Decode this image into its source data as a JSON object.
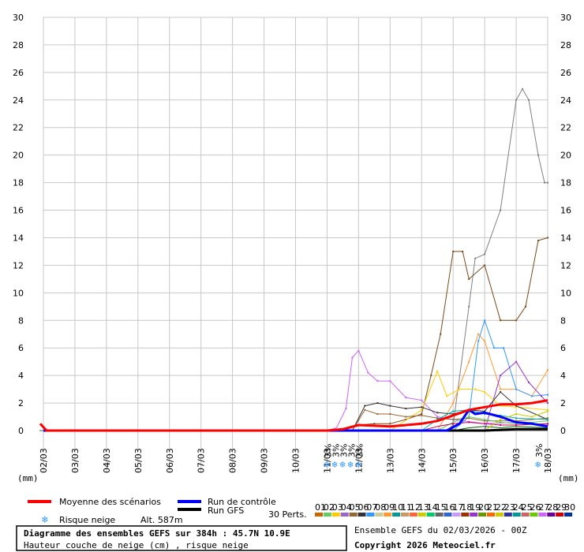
{
  "chart_data": {
    "type": "line",
    "x_categories": [
      "02/03",
      "03/03",
      "04/03",
      "05/03",
      "06/03",
      "07/03",
      "08/03",
      "09/03",
      "10/03",
      "11/03",
      "12/03",
      "13/03",
      "14/03",
      "15/03",
      "16/03",
      "17/03",
      "18/03"
    ],
    "ylim": [
      0,
      30
    ],
    "y_ticks": [
      0,
      2,
      4,
      6,
      8,
      10,
      12,
      14,
      16,
      18,
      20,
      22,
      24,
      26,
      28,
      30
    ],
    "y_unit_label": "(mm)",
    "grid": true,
    "series": [
      {
        "name": "Moyenne des scénarios",
        "color": "#ff0000",
        "width": 3,
        "points": [
          [
            -0.1,
            0.5
          ],
          [
            0.1,
            0
          ],
          [
            9,
            0
          ],
          [
            9.5,
            0.1
          ],
          [
            10,
            0.4
          ],
          [
            11,
            0.3
          ],
          [
            12,
            0.5
          ],
          [
            12.5,
            0.7
          ],
          [
            13,
            1.1
          ],
          [
            13.5,
            1.5
          ],
          [
            14,
            1.7
          ],
          [
            14.5,
            1.9
          ],
          [
            15,
            1.9
          ],
          [
            15.5,
            2.0
          ],
          [
            16,
            2.2
          ]
        ]
      },
      {
        "name": "Run de contrôle",
        "color": "#0000ff",
        "width": 3,
        "points": [
          [
            0,
            0
          ],
          [
            12.8,
            0
          ],
          [
            13.2,
            0.5
          ],
          [
            13.5,
            1.5
          ],
          [
            13.7,
            1.2
          ],
          [
            14,
            1.3
          ],
          [
            14.5,
            1.0
          ],
          [
            15,
            0.6
          ],
          [
            15.5,
            0.5
          ],
          [
            16,
            0.3
          ]
        ]
      },
      {
        "name": "Run GFS",
        "color": "#000000",
        "width": 3,
        "points": [
          [
            0,
            0
          ],
          [
            14,
            0
          ],
          [
            15,
            0.1
          ],
          [
            16,
            0.1
          ]
        ]
      }
    ],
    "perturbations": [
      {
        "color": "#808080",
        "points": [
          [
            0,
            0
          ],
          [
            12.8,
            0
          ],
          [
            13,
            0.4
          ],
          [
            13.5,
            9
          ],
          [
            13.7,
            12.5
          ],
          [
            14,
            12.8
          ],
          [
            14.5,
            16
          ],
          [
            15,
            24
          ],
          [
            15.2,
            24.8
          ],
          [
            15.4,
            24
          ],
          [
            15.7,
            20
          ],
          [
            15.9,
            18
          ],
          [
            16,
            18
          ]
        ]
      },
      {
        "color": "#7a4a1a",
        "points": [
          [
            0,
            0
          ],
          [
            9.5,
            0
          ],
          [
            10,
            0.4
          ],
          [
            10.5,
            0.5
          ],
          [
            11,
            0.5
          ],
          [
            11.5,
            0.8
          ],
          [
            12,
            1.2
          ],
          [
            12.3,
            4
          ],
          [
            12.6,
            7
          ],
          [
            13,
            13
          ],
          [
            13.3,
            13
          ],
          [
            13.5,
            11
          ],
          [
            14,
            12
          ],
          [
            14.5,
            8
          ],
          [
            15,
            8
          ],
          [
            15.3,
            9
          ],
          [
            15.7,
            13.8
          ],
          [
            16,
            14
          ]
        ]
      },
      {
        "color": "#cc66ff",
        "points": [
          [
            0,
            0
          ],
          [
            9,
            0
          ],
          [
            9.3,
            0.2
          ],
          [
            9.6,
            1.6
          ],
          [
            9.8,
            5.3
          ],
          [
            10,
            5.8
          ],
          [
            10.3,
            4.2
          ],
          [
            10.6,
            3.6
          ],
          [
            11,
            3.6
          ],
          [
            11.5,
            2.4
          ],
          [
            12,
            2.2
          ],
          [
            12.5,
            1
          ],
          [
            13,
            0.8
          ],
          [
            14,
            0.5
          ],
          [
            15,
            0.6
          ],
          [
            16,
            0.4
          ]
        ]
      },
      {
        "color": "#ff9933",
        "points": [
          [
            0,
            0
          ],
          [
            12.5,
            0
          ],
          [
            13,
            2
          ],
          [
            13.5,
            5
          ],
          [
            13.8,
            7
          ],
          [
            14,
            6.5
          ],
          [
            14.5,
            3
          ],
          [
            15,
            3
          ],
          [
            15.5,
            2.5
          ],
          [
            16,
            4.4
          ]
        ]
      },
      {
        "color": "#3399ff",
        "points": [
          [
            0,
            0
          ],
          [
            13,
            0
          ],
          [
            13.5,
            1
          ],
          [
            13.8,
            6.5
          ],
          [
            14,
            8
          ],
          [
            14.3,
            6
          ],
          [
            14.6,
            6
          ],
          [
            15,
            3
          ],
          [
            15.5,
            2.5
          ],
          [
            16,
            2.6
          ]
        ]
      },
      {
        "color": "#9933cc",
        "points": [
          [
            0,
            0
          ],
          [
            14,
            0
          ],
          [
            14.5,
            4
          ],
          [
            15,
            5
          ],
          [
            15.4,
            3.5
          ],
          [
            15.8,
            2.5
          ],
          [
            16,
            2.0
          ]
        ]
      },
      {
        "color": "#ffcc00",
        "points": [
          [
            0,
            0
          ],
          [
            11,
            0
          ],
          [
            12,
            1.5
          ],
          [
            12.5,
            4.3
          ],
          [
            12.8,
            2.5
          ],
          [
            13.2,
            3
          ],
          [
            13.7,
            3
          ],
          [
            14,
            2.8
          ],
          [
            14.5,
            1.8
          ],
          [
            15,
            1.7
          ],
          [
            16,
            1.5
          ]
        ]
      },
      {
        "color": "#333333",
        "points": [
          [
            0,
            0
          ],
          [
            9.8,
            0
          ],
          [
            10.2,
            1.8
          ],
          [
            10.6,
            2.0
          ],
          [
            11,
            1.8
          ],
          [
            11.5,
            1.6
          ],
          [
            12,
            1.7
          ],
          [
            12.5,
            1.3
          ],
          [
            13,
            1.2
          ],
          [
            13.5,
            1.5
          ],
          [
            14,
            1.4
          ],
          [
            14.5,
            2.8
          ],
          [
            15,
            1.8
          ],
          [
            16,
            0.8
          ]
        ]
      },
      {
        "color": "#996633",
        "points": [
          [
            0,
            0
          ],
          [
            9.8,
            0
          ],
          [
            10.2,
            1.5
          ],
          [
            10.6,
            1.2
          ],
          [
            11,
            1.2
          ],
          [
            11.5,
            1
          ],
          [
            12,
            1.1
          ],
          [
            12.5,
            0.9
          ],
          [
            13,
            0.8
          ],
          [
            13.5,
            0.9
          ],
          [
            14,
            0.7
          ],
          [
            15,
            0.7
          ],
          [
            16,
            0.9
          ]
        ]
      },
      {
        "color": "#00aaaa",
        "points": [
          [
            0,
            0
          ],
          [
            12,
            0
          ],
          [
            12.5,
            0.8
          ],
          [
            13,
            1.4
          ],
          [
            13.5,
            1.5
          ],
          [
            14,
            1.2
          ],
          [
            14.5,
            1.1
          ],
          [
            15,
            0.9
          ],
          [
            16,
            0.8
          ]
        ]
      },
      {
        "color": "#66cc66",
        "points": [
          [
            0,
            0
          ],
          [
            12.5,
            0
          ],
          [
            13,
            0.6
          ],
          [
            13.5,
            1.0
          ],
          [
            14,
            0.8
          ],
          [
            14.5,
            0.6
          ],
          [
            15,
            0.5
          ],
          [
            16,
            0.7
          ]
        ]
      },
      {
        "color": "#cc0066",
        "points": [
          [
            0,
            0
          ],
          [
            12,
            0
          ],
          [
            12.5,
            0.3
          ],
          [
            13,
            0.5
          ],
          [
            13.5,
            0.6
          ],
          [
            14,
            0.5
          ],
          [
            14.5,
            0.4
          ],
          [
            15,
            0.4
          ],
          [
            16,
            0.5
          ]
        ]
      },
      {
        "color": "#006600",
        "points": [
          [
            0,
            0
          ],
          [
            13,
            0
          ],
          [
            13.5,
            0.2
          ],
          [
            14,
            0.3
          ],
          [
            14.5,
            0.2
          ],
          [
            15,
            0.3
          ],
          [
            16,
            0.2
          ]
        ]
      },
      {
        "color": "#cccc00",
        "points": [
          [
            0,
            0
          ],
          [
            14,
            0
          ],
          [
            14.5,
            0.8
          ],
          [
            15,
            1.2
          ],
          [
            15.5,
            1.0
          ],
          [
            16,
            1.4
          ]
        ]
      }
    ],
    "snow_risk": [
      {
        "x": 9.05,
        "label": "3%"
      },
      {
        "x": 9.3,
        "label": "3%"
      },
      {
        "x": 9.55,
        "label": "3%"
      },
      {
        "x": 9.8,
        "label": "3%"
      },
      {
        "x": 10.05,
        "label": "3%"
      },
      {
        "x": 15.75,
        "label": "3%"
      }
    ]
  },
  "legend": {
    "mean": "Moyenne des scénarios",
    "control": "Run de contrôle",
    "gfs": "Run GFS",
    "snow_risk": "Risque neige",
    "altitude": "Alt. 587m",
    "perts_label": "30 Perts.",
    "pert_numbers": [
      "01",
      "02",
      "03",
      "04",
      "05",
      "06",
      "07",
      "08",
      "09",
      "10",
      "11",
      "12",
      "13",
      "14",
      "15",
      "16",
      "17",
      "18",
      "19",
      "20",
      "21",
      "22",
      "23",
      "24",
      "25",
      "26",
      "27",
      "28",
      "29",
      "30"
    ],
    "pert_colors": [
      "#cc6600",
      "#66cc66",
      "#ffcc00",
      "#9966cc",
      "#996633",
      "#333333",
      "#3399ff",
      "#cccc99",
      "#ff9933",
      "#009999",
      "#cc9966",
      "#ff6633",
      "#cccc00",
      "#00cc66",
      "#666666",
      "#3366cc",
      "#cc99ff",
      "#993300",
      "#9933cc",
      "#669900",
      "#ff6600",
      "#cccc00",
      "#333399",
      "#009999",
      "#cc6666",
      "#66cc00",
      "#cc66ff",
      "#660099",
      "#cc0000",
      "#003399"
    ]
  },
  "footer": {
    "title": "Diagramme des ensembles GEFS sur 384h : 45.7N 10.9E",
    "subtitle": "Hauteur couche de neige (cm) , risque neige",
    "ensemble": "Ensemble GEFS du 02/03/2026 - 00Z",
    "copyright": "Copyright 2026 Meteociel.fr"
  }
}
